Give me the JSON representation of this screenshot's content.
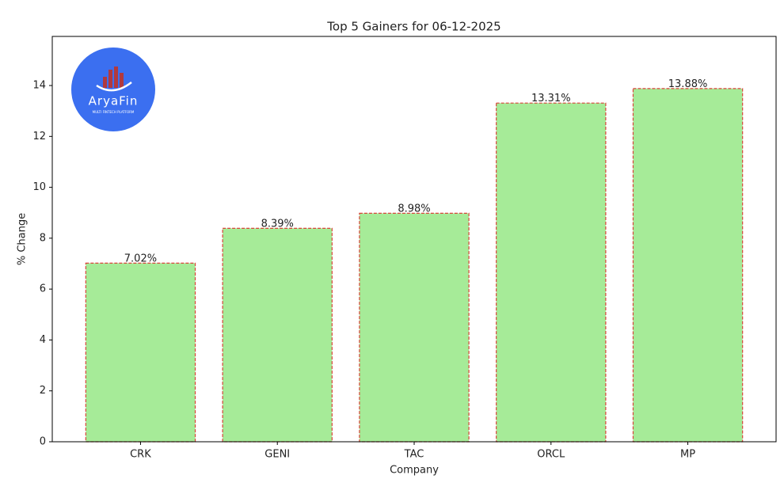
{
  "chart_data": {
    "type": "bar",
    "title": "Top 5 Gainers for 06-12-2025",
    "x_label": "Company",
    "y_label": "% Change",
    "categories": [
      "CRK",
      "GENI",
      "TAC",
      "ORCL",
      "MP"
    ],
    "values": [
      7.02,
      8.39,
      8.98,
      13.31,
      13.88
    ],
    "value_labels": [
      "7.02%",
      "8.39%",
      "8.98%",
      "13.31%",
      "13.88%"
    ],
    "color": "#a6eb98",
    "edge_color": "#d9453a",
    "ylim": [
      0,
      15.93
    ],
    "yticks": [
      0,
      2,
      4,
      6,
      8,
      10,
      12,
      14
    ],
    "grid": false,
    "logo": {
      "name": "AryaFin",
      "tagline": "MULTI FINTECH PLATFORM"
    }
  }
}
